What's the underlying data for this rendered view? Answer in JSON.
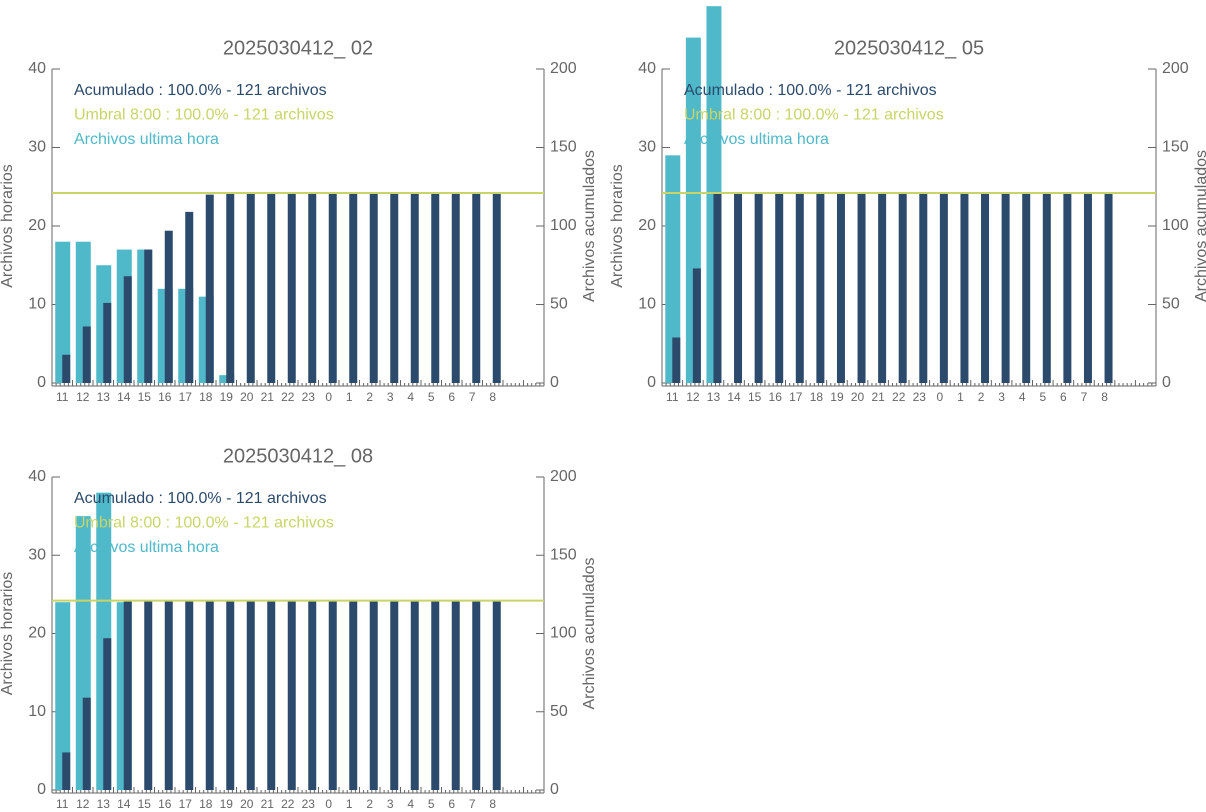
{
  "chart_data": [
    {
      "type": "bar",
      "title": "2025030412_ 02",
      "ylabel": "Archivos horarios",
      "y2label": "Archivos acumulados",
      "categories": [
        "11",
        "12",
        "13",
        "14",
        "15",
        "16",
        "17",
        "18",
        "19",
        "20",
        "21",
        "22",
        "23",
        "0",
        "1",
        "2",
        "3",
        "4",
        "5",
        "6",
        "7",
        "8",
        null,
        null
      ],
      "series": [
        {
          "name": "Archivos ultima hora",
          "color": "#4fb9c9",
          "values": [
            18,
            18,
            15,
            17,
            17,
            12,
            12,
            11,
            1,
            0,
            0,
            0,
            0,
            0,
            0,
            0,
            0,
            0,
            0,
            0,
            0,
            0,
            null,
            null
          ]
        },
        {
          "name": "Acumulado : 100.0% - 121 archivos",
          "color": "#2c4a6c",
          "axis": "y2",
          "values": [
            18,
            36,
            51,
            68,
            85,
            97,
            109,
            120,
            121,
            121,
            121,
            121,
            121,
            121,
            121,
            121,
            121,
            121,
            121,
            121,
            121,
            121,
            null,
            null
          ]
        }
      ],
      "threshold": {
        "label": "Umbral 8:00 : 100.0% - 121 archivos",
        "value": 121,
        "color": "#c9d468",
        "axis": "y2"
      },
      "ylim": [
        0,
        40
      ],
      "yticks": [
        0,
        10,
        20,
        30,
        40
      ],
      "y2lim": [
        0,
        200
      ],
      "y2ticks": [
        0,
        50,
        100,
        150,
        200
      ]
    },
    {
      "type": "bar",
      "title": "2025030412_ 05",
      "ylabel": "Archivos horarios",
      "y2label": "Archivos acumulados",
      "categories": [
        "11",
        "12",
        "13",
        "14",
        "15",
        "16",
        "17",
        "18",
        "19",
        "20",
        "21",
        "22",
        "23",
        "0",
        "1",
        "2",
        "3",
        "4",
        "5",
        "6",
        "7",
        "8",
        null,
        null
      ],
      "series": [
        {
          "name": "Archivos ultima hora",
          "color": "#4fb9c9",
          "values": [
            29,
            44,
            48,
            0,
            0,
            0,
            0,
            0,
            0,
            0,
            0,
            0,
            0,
            0,
            0,
            0,
            0,
            0,
            0,
            0,
            0,
            0,
            null,
            null
          ]
        },
        {
          "name": "Acumulado : 100.0% - 121 archivos",
          "color": "#2c4a6c",
          "axis": "y2",
          "values": [
            29,
            73,
            121,
            121,
            121,
            121,
            121,
            121,
            121,
            121,
            121,
            121,
            121,
            121,
            121,
            121,
            121,
            121,
            121,
            121,
            121,
            121,
            null,
            null
          ]
        }
      ],
      "threshold": {
        "label": "Umbral 8:00 : 100.0% - 121 archivos",
        "value": 121,
        "color": "#c9d468",
        "axis": "y2"
      },
      "ylim": [
        0,
        40
      ],
      "yticks": [
        0,
        10,
        20,
        30,
        40
      ],
      "y2lim": [
        0,
        200
      ],
      "y2ticks": [
        0,
        50,
        100,
        150,
        200
      ]
    },
    {
      "type": "bar",
      "title": "2025030412_ 08",
      "ylabel": "Archivos horarios",
      "y2label": "Archivos acumulados",
      "categories": [
        "11",
        "12",
        "13",
        "14",
        "15",
        "16",
        "17",
        "18",
        "19",
        "20",
        "21",
        "22",
        "23",
        "0",
        "1",
        "2",
        "3",
        "4",
        "5",
        "6",
        "7",
        "8",
        null,
        null
      ],
      "series": [
        {
          "name": "Archivos ultima hora",
          "color": "#4fb9c9",
          "values": [
            24,
            35,
            38,
            24,
            0,
            0,
            0,
            0,
            0,
            0,
            0,
            0,
            0,
            0,
            0,
            0,
            0,
            0,
            0,
            0,
            0,
            0,
            null,
            null
          ]
        },
        {
          "name": "Acumulado : 100.0% - 121 archivos",
          "color": "#2c4a6c",
          "axis": "y2",
          "values": [
            24,
            59,
            97,
            121,
            121,
            121,
            121,
            121,
            121,
            121,
            121,
            121,
            121,
            121,
            121,
            121,
            121,
            121,
            121,
            121,
            121,
            121,
            null,
            null
          ]
        }
      ],
      "threshold": {
        "label": "Umbral 8:00 : 100.0% - 121 archivos",
        "value": 121,
        "color": "#c9d468",
        "axis": "y2"
      },
      "ylim": [
        0,
        40
      ],
      "yticks": [
        0,
        10,
        20,
        30,
        40
      ],
      "y2lim": [
        0,
        200
      ],
      "y2ticks": [
        0,
        50,
        100,
        150,
        200
      ]
    }
  ]
}
